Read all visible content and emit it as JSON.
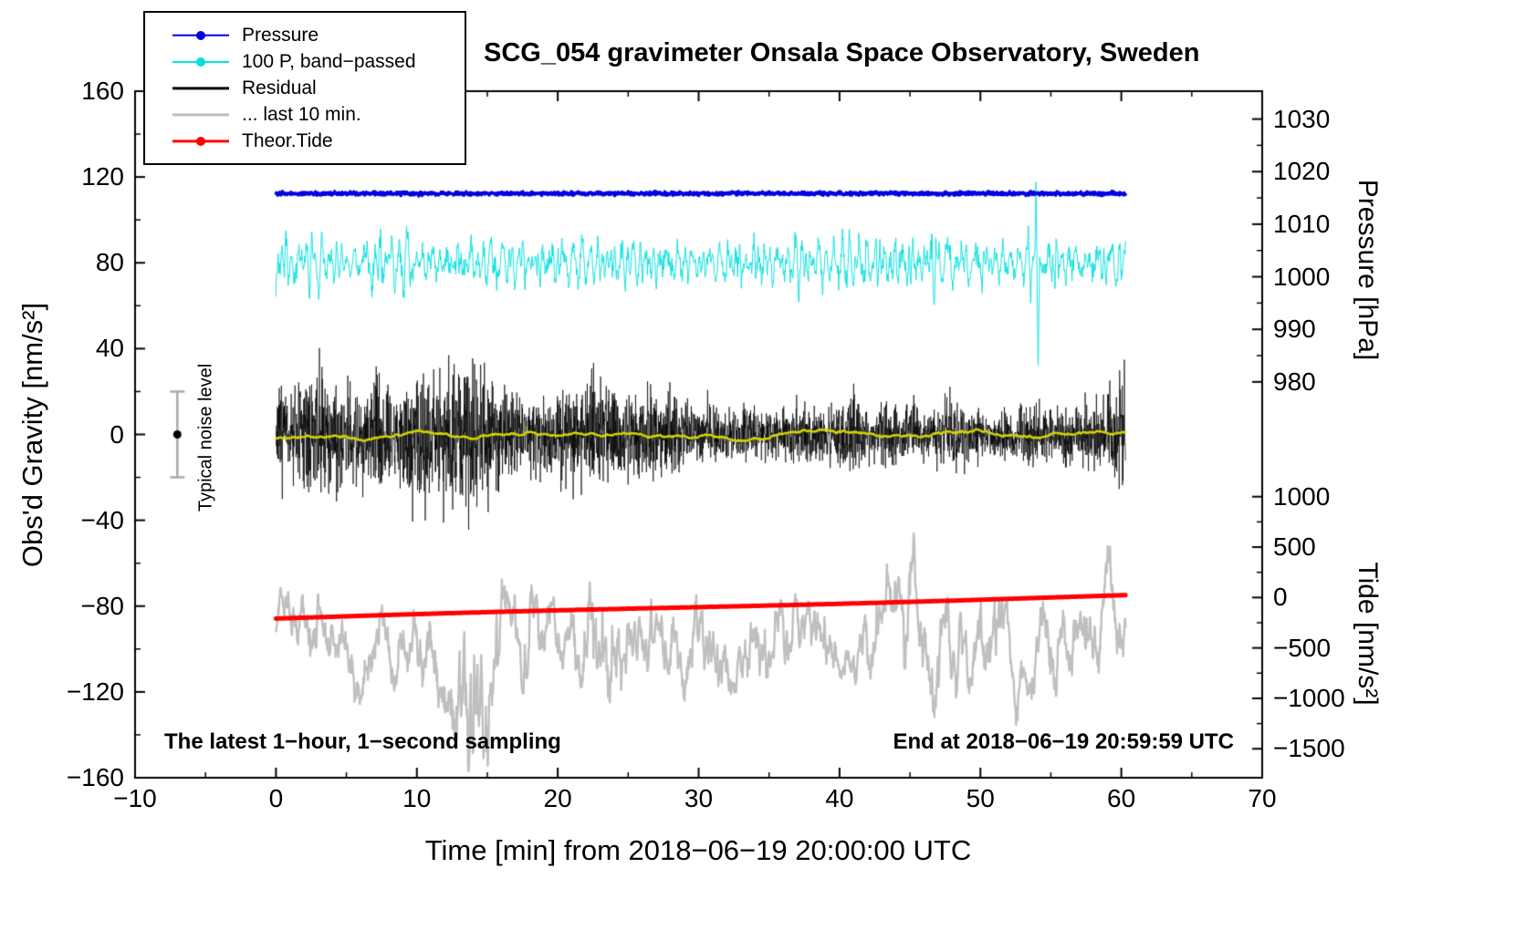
{
  "annotations": {
    "sampling": "The latest 1−hour, 1−second sampling",
    "end_time": "End at 2018−06−19 20:59:59 UTC",
    "noise_label": "Typical noise level"
  },
  "legend": {
    "items": [
      {
        "label": "Pressure",
        "color": "#0000e0",
        "dot": true,
        "line_width": 2.6
      },
      {
        "label": "100 P, band−passed",
        "color": "#00dede",
        "dot": true,
        "line_width": 2.2
      },
      {
        "label": "Residual",
        "color": "#000000",
        "dot": false,
        "line_width": 3.2
      },
      {
        "label": "... last 10 min.",
        "color": "#bfbfbf",
        "dot": false,
        "line_width": 3.2
      },
      {
        "label": "Theor.Tide",
        "color": "#ff0000",
        "dot": true,
        "line_width": 3.2
      }
    ]
  },
  "chart_data": {
    "type": "line",
    "title": "SCG_054 gravimeter Onsala Space Observatory, Sweden",
    "xlabel": "Time [min] from 2018−06−19 20:00:00 UTC",
    "x_range": [
      -10,
      70
    ],
    "x_ticks": [
      -10,
      0,
      10,
      20,
      30,
      40,
      50,
      60,
      70
    ],
    "x_minor_step": 5,
    "grid": false,
    "legend_position": "top-left",
    "gravity_axis": {
      "label": "Obs'd Gravity [nm/s²]",
      "range": [
        -160,
        160
      ],
      "ticks": [
        -160,
        -120,
        -80,
        -40,
        0,
        40,
        80,
        120,
        160
      ],
      "minor_step": 20
    },
    "pressure_axis": {
      "label": "Pressure [hPa]",
      "ticks": [
        1030,
        1020,
        1010,
        1000,
        990,
        980
      ],
      "minor_step": 5,
      "anchor_value": 1030,
      "anchor_gravity": 147,
      "gravity_per_unit": 2.45
    },
    "tide_axis": {
      "label": "Tide [nm/s²]",
      "ticks": [
        1000,
        500,
        0,
        -500,
        -1000,
        -1500
      ],
      "minor_step": 250,
      "anchor_value": 0,
      "anchor_gravity": -76,
      "gravity_per_unit": 0.047
    },
    "noise_bar": {
      "x": -7,
      "center_gravity": 0,
      "half_range": 20
    },
    "series": [
      {
        "name": "... last 10 min.",
        "color": "#bfbfbf",
        "kind": "smooth-noise",
        "axis": "gravity",
        "baseline": -101,
        "amp": 60,
        "smooth": 9,
        "drift_amp": 4,
        "t_start": 0,
        "t_end": 60.3,
        "points": 1810,
        "line_width": 2.4,
        "seed": 9,
        "clamp": [
          -157,
          -45
        ],
        "bumps": [
          {
            "t": 13.8,
            "scale": 1.9,
            "width": 1.7
          },
          {
            "t": 23.2,
            "scale": 0.9,
            "width": 1.2
          },
          {
            "t": 45.5,
            "scale": 0.5,
            "width": 2.0
          }
        ]
      },
      {
        "name": "100 P, band−passed",
        "color": "#00dede",
        "kind": "bandpassed-noise",
        "axis": "gravity",
        "baseline": 80,
        "amp": 16,
        "t_start": 0,
        "t_end": 60.3,
        "points": 1810,
        "line_width": 0.9,
        "seed": 3,
        "clamp": [
          32,
          118
        ],
        "events": [
          {
            "t": 53.95,
            "amplitude": 38,
            "width": 0.05
          },
          {
            "t": 54.1,
            "amplitude": -47,
            "width": 0.07
          }
        ]
      },
      {
        "name": "Pressure",
        "color": "#0000e0",
        "kind": "flat-noise",
        "axis": "gravity",
        "baseline": 112.3,
        "approx_value_hpa": 1015.5,
        "sigma": 0.4,
        "t_start": 0,
        "t_end": 60.3,
        "points": 1810,
        "line_width": 3.4,
        "seed": 1
      },
      {
        "name": "Residual",
        "color": "#000000",
        "kind": "burst-noise",
        "axis": "gravity",
        "baseline": 0,
        "sigma": 9.5,
        "t_start": 0,
        "t_end": 60.3,
        "points": 3620,
        "line_width": 0.7,
        "seed": 7,
        "clamp": [
          -57,
          57
        ]
      },
      {
        "name": "Residual smoothed",
        "color": "#d4d400",
        "kind": "slow-wiggle",
        "axis": "gravity",
        "baseline": 0,
        "amp": 13,
        "smooth": 60,
        "t_start": 0,
        "t_end": 60.3,
        "points": 1810,
        "line_width": 2.4,
        "seed": 5
      },
      {
        "name": "Theor.Tide",
        "color": "#ff0000",
        "kind": "trend",
        "axis": "gravity",
        "start_gravity": -85.8,
        "end_gravity": -75,
        "tide_value_start": -210,
        "tide_value_end": 20,
        "wave_amp": 0.3,
        "t_start": 0,
        "t_end": 60.3,
        "points": 240,
        "line_width": 5,
        "seed": 2
      }
    ]
  }
}
